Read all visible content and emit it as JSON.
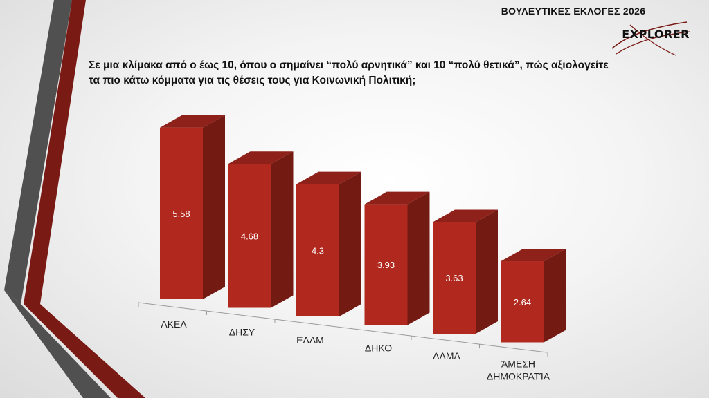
{
  "header": {
    "title": "ΒΟΥΛΕΥΤΙΚΕΣ ΕΚΛΟΓΕΣ 2026"
  },
  "logo": {
    "text": "EXPLORER"
  },
  "question": {
    "line1": "Σε μια κλίμακα από ο έως 10, όπου ο σημαίνει “πολύ αρνητικά” και 10 “πολύ θετικά”, πώς αξιολογείτε",
    "line2": "τα πιο κάτω κόμματα για τις θέσεις τους για Κοινωνική Πολιτική;"
  },
  "colors": {
    "bar_front": "#b0281e",
    "bar_side": "#731a13",
    "bar_top": "#8e2119",
    "accent": "#7a1a14"
  },
  "chart_data": {
    "type": "bar",
    "categories": [
      "ΑΚΕΛ",
      "ΔΗΣΥ",
      "ΕΛΑΜ",
      "ΔΗΚΟ",
      "ΑΛΜΑ",
      "ΆΜΕΣΗ ΔΗΜΟΚΡΑΤΊΑ"
    ],
    "values": [
      5.58,
      4.68,
      4.3,
      3.93,
      3.63,
      2.64
    ],
    "data_labels": [
      "5.58",
      "4.68",
      "4.3",
      "3.93",
      "3.63",
      "2.64"
    ],
    "style": "3d-column",
    "grid": false,
    "legend": "none"
  }
}
